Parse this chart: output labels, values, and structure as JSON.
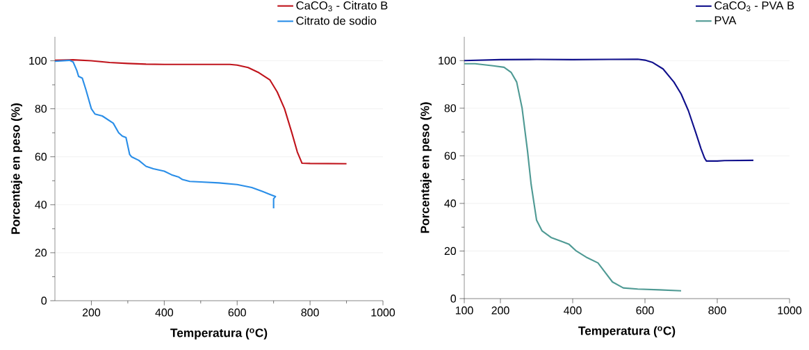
{
  "chart_data": [
    {
      "type": "line",
      "xlabel": "Temperatura ($^{o}$C)",
      "ylabel": "Porcentaje en peso (%)",
      "xlim": [
        100,
        1000
      ],
      "ylim": [
        0,
        110
      ],
      "xticks": [
        200,
        400,
        600,
        800,
        1000
      ],
      "yticks": [
        0,
        20,
        40,
        60,
        80,
        100
      ],
      "grid": "y",
      "legend": "top right",
      "line_style": "solid",
      "marker": "none",
      "series": [
        {
          "name": "CaCO$_{3}$ - Citrato B",
          "color": "#c0141c",
          "x": [
            100,
            150,
            200,
            250,
            300,
            350,
            400,
            500,
            580,
            600,
            630,
            660,
            690,
            710,
            730,
            750,
            765,
            778,
            800,
            900
          ],
          "values": [
            100.2,
            100.4,
            100,
            99.3,
            98.9,
            98.6,
            98.5,
            98.5,
            98.5,
            98.2,
            97.2,
            95,
            92,
            87,
            80,
            70,
            62,
            57.3,
            57.2,
            57.1
          ]
        },
        {
          "name": "Citrato de sodio",
          "color": "#2a8ee8",
          "x": [
            100,
            140,
            150,
            160,
            165,
            175,
            185,
            200,
            210,
            230,
            260,
            275,
            285,
            295,
            305,
            310,
            330,
            350,
            370,
            400,
            420,
            440,
            450,
            470,
            500,
            550,
            600,
            640,
            670,
            690,
            705,
            700,
            700
          ],
          "values": [
            99.8,
            100.2,
            99.5,
            96,
            93.5,
            92.8,
            88,
            80,
            77.8,
            77,
            74,
            70,
            68.6,
            68,
            61,
            60,
            58.5,
            56,
            55,
            54,
            52.5,
            51.5,
            50.5,
            49.7,
            49.5,
            49.1,
            48.4,
            47.2,
            45.5,
            44.3,
            43.4,
            42.5,
            38.5
          ]
        }
      ]
    },
    {
      "type": "line",
      "xlabel": "Temperatura ($^{o}$C)",
      "ylabel": "Porcentaje en peso (%)",
      "xlim": [
        100,
        1000
      ],
      "ylim": [
        0,
        110
      ],
      "xticks": [
        100,
        200,
        400,
        600,
        800,
        1000
      ],
      "yticks": [
        0,
        20,
        40,
        60,
        80,
        100
      ],
      "grid": "y",
      "legend": "top right",
      "line_style": "solid",
      "marker": "none",
      "series": [
        {
          "name": "CaCO$_{3}$ - PVA B",
          "color": "#10108c",
          "x": [
            100,
            200,
            300,
            400,
            500,
            580,
            600,
            620,
            650,
            680,
            700,
            720,
            740,
            755,
            765,
            770,
            800,
            820,
            900
          ],
          "values": [
            100,
            100.4,
            100.5,
            100.4,
            100.5,
            100.6,
            100.2,
            99.3,
            96.5,
            91,
            86,
            79,
            70,
            63,
            59,
            57.8,
            57.8,
            58,
            58.1
          ]
        },
        {
          "name": "PVA",
          "color": "#4f9a94",
          "x": [
            100,
            130,
            180,
            210,
            230,
            245,
            260,
            275,
            285,
            300,
            315,
            340,
            370,
            390,
            410,
            440,
            470,
            490,
            510,
            540,
            580,
            640,
            700
          ],
          "values": [
            98.7,
            98.7,
            97.8,
            97.2,
            95,
            91,
            80,
            62,
            48,
            33,
            28.5,
            25.7,
            24,
            22.8,
            20,
            17.2,
            15,
            11,
            7,
            4.5,
            4,
            3.7,
            3.3
          ]
        }
      ]
    }
  ]
}
